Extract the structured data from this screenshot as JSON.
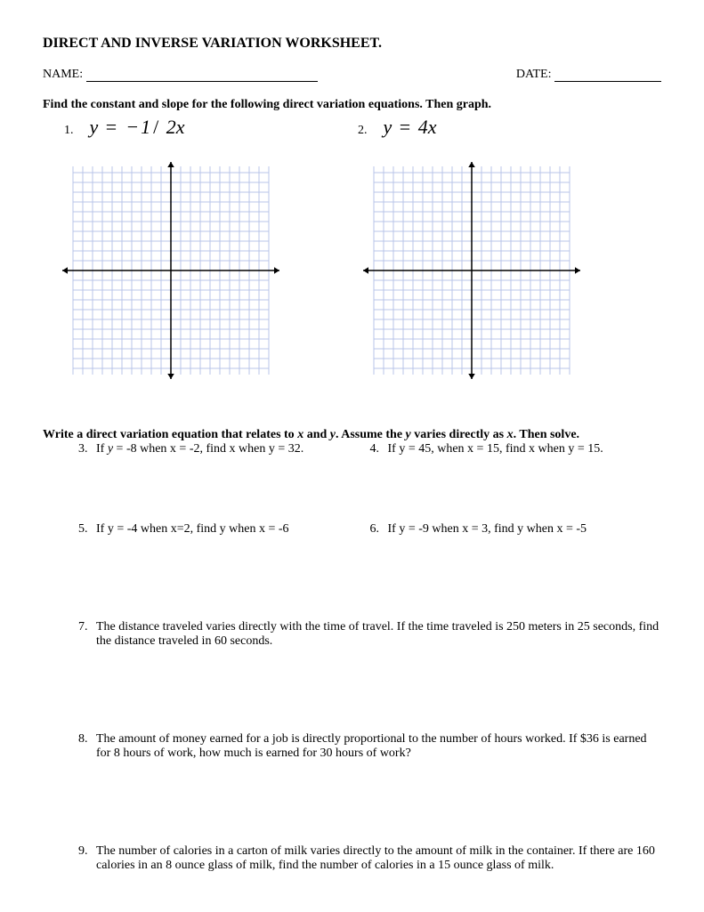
{
  "title": "DIRECT AND INVERSE VARIATION WORKSHEET.",
  "header": {
    "name_label": "NAME:",
    "name_blank_width": 260,
    "date_label": "DATE:",
    "date_blank_width": 120
  },
  "section1": {
    "instruction": "Find the constant and slope for the following direct variation equations.  Then graph.",
    "items": [
      {
        "num": "1.",
        "equation_html": "<span class='eq-math'>y <span class='op'>=</span> <span class='op'>−</span>1<span class='op'>/</span> 2x</span>"
      },
      {
        "num": "2.",
        "equation_html": "<span class='eq-math'>y <span class='op'>=</span> 4x</span>"
      }
    ],
    "grid": {
      "cells": 20,
      "cell_size": 11,
      "grid_color": "#b8c4e8",
      "axis_color": "#000000",
      "tick_overhang": 14,
      "axis_width": 1.5
    }
  },
  "section2": {
    "instruction_parts": [
      "Write a direct variation equation that relates to ",
      "x",
      " and ",
      "y",
      ".  Assume the ",
      "y",
      " varies directly as ",
      "x",
      ".  Then solve."
    ],
    "pairs": [
      [
        {
          "num": "3.",
          "text_html": "If <span class='italic'>y</span> = -8 when x = -2, find x when y = 32."
        },
        {
          "num": "4.",
          "text_html": "If y = 45, when x = 15, find x when y = 15."
        }
      ],
      [
        {
          "num": "5.",
          "text_html": "If y = -4 when x=2, find y when x = -6"
        },
        {
          "num": "6.",
          "text_html": "If y = -9 when x = 3, find y when x = -5"
        }
      ]
    ],
    "long_questions": [
      {
        "num": "7.",
        "text": "The distance traveled varies directly with the time of travel.  If the time traveled is 250 meters in 25 seconds, find the distance traveled in 60 seconds."
      },
      {
        "num": "8.",
        "text": "The amount of money earned for a job is directly proportional to the number of hours worked.  If $36 is earned for 8 hours of work, how much is earned for 30 hours of work?"
      },
      {
        "num": "9.",
        "text": "The number of calories in a carton of milk varies directly to the amount of milk in the container. If there are 160 calories in an 8 ounce glass of milk, find the number of calories in a 15 ounce glass of milk."
      }
    ]
  }
}
